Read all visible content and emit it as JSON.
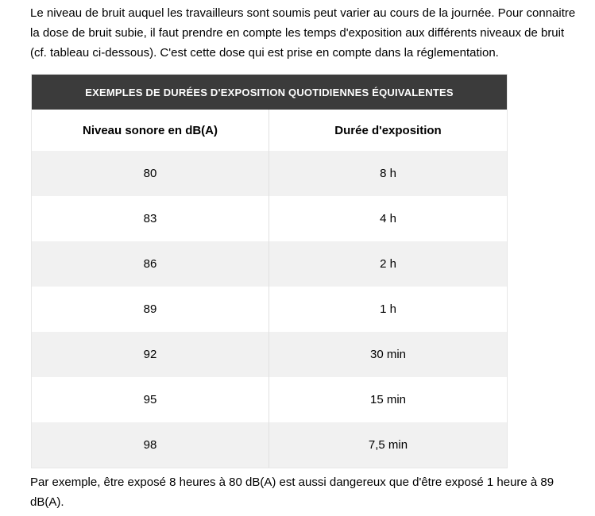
{
  "intro": {
    "lines": [
      "Le niveau de bruit auquel les travailleurs sont soumis peut varier au cours de la journée. Pour connaitre",
      "la dose de bruit subie, il faut prendre en compte les temps d'exposition aux différents niveaux de bruit",
      "(cf. tableau ci-dessous). C'est cette dose qui est prise en compte dans la réglementation."
    ]
  },
  "table": {
    "title": "EXEMPLES DE DURÉES D'EXPOSITION QUOTIDIENNES ÉQUIVALENTES",
    "columns": [
      "Niveau sonore en dB(A)",
      "Durée d'exposition"
    ],
    "rows": [
      {
        "level": "80",
        "duration": "8 h"
      },
      {
        "level": "83",
        "duration": "4 h"
      },
      {
        "level": "86",
        "duration": "2 h"
      },
      {
        "level": "89",
        "duration": "1 h"
      },
      {
        "level": "92",
        "duration": "30 min"
      },
      {
        "level": "95",
        "duration": "15 min"
      },
      {
        "level": "98",
        "duration": "7,5 min"
      }
    ]
  },
  "example": {
    "lines": [
      "Par exemple, être exposé 8 heures à 80 dB(A) est aussi dangereux que d'être exposé 1 heure à 89",
      "dB(A)."
    ]
  },
  "colors": {
    "header_bg": "#3b3b3b",
    "header_text": "#ffffff",
    "row_alt_bg": "#f1f1f1",
    "border": "#e7e7e7",
    "divider": "#e0e0e0"
  }
}
